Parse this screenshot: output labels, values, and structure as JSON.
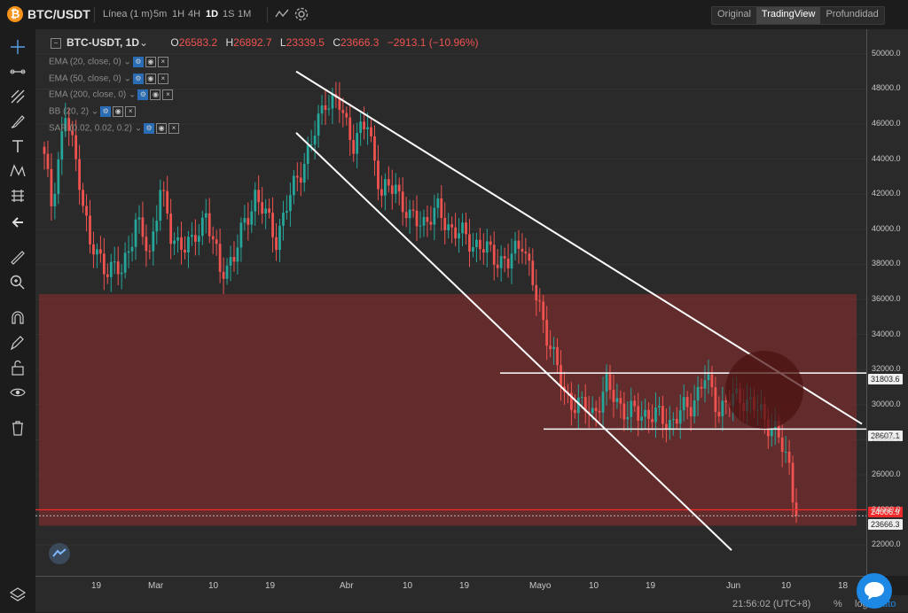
{
  "header": {
    "pair": "BTC/USDT",
    "chart_type": "Línea (1 m)",
    "timeframes": [
      "5m",
      "1H",
      "4H",
      "1D",
      "1S",
      "1M"
    ],
    "active_timeframe": "1D",
    "views": [
      "Original",
      "TradingView",
      "Profundidad"
    ],
    "active_view": "TradingView"
  },
  "legend": {
    "symbol": "BTC-USDT, 1D",
    "open_label": "O",
    "open": "26583.2",
    "high_label": "H",
    "high": "26892.7",
    "low_label": "L",
    "low": "23339.5",
    "close_label": "C",
    "close": "23666.3",
    "change": "−2913.1 (−10.96%)"
  },
  "indicators": [
    {
      "label": "EMA (20, close, 0)"
    },
    {
      "label": "EMA (50, close, 0)"
    },
    {
      "label": "EMA (200, close, 0)"
    },
    {
      "label": "BB (20, 2)"
    },
    {
      "label": "SAR (0.02, 0.02, 0.2)"
    }
  ],
  "price_tags": {
    "upper_level": "31803.6",
    "lower_level": "28607.1",
    "red_line": "24006.9",
    "last_price": "23666.3"
  },
  "bottom": {
    "time": "21:56:02 (UTC+8)",
    "percent": "%",
    "log": "log",
    "auto": "auto"
  },
  "colors": {
    "up": "#26a69a",
    "down": "#ef5350",
    "zone": "#7a2e2e",
    "accent": "#1e88e5"
  },
  "chart_data": {
    "type": "candlestick",
    "ylim": [
      21000,
      51000
    ],
    "y_ticks": [
      22000,
      24000,
      26000,
      28000,
      30000,
      32000,
      34000,
      36000,
      38000,
      40000,
      42000,
      44000,
      46000,
      48000,
      50000
    ],
    "x_ticks": [
      "19",
      "Mar",
      "10",
      "19",
      "Abr",
      "10",
      "19",
      "Mayo",
      "10",
      "19",
      "Jun",
      "10",
      "18"
    ]
  }
}
